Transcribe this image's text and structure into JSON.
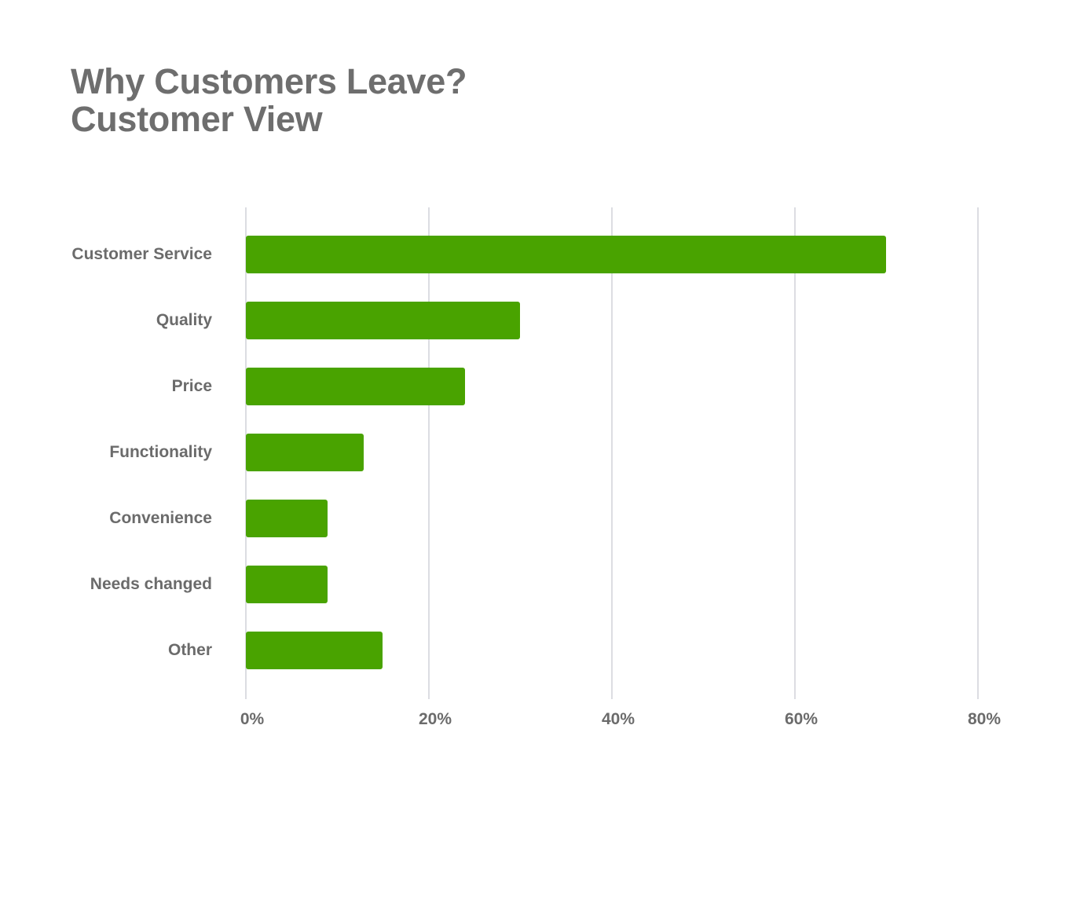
{
  "title": {
    "line1": "Why Customers Leave?",
    "line2": "Customer View"
  },
  "colors": {
    "bar": "#49a300",
    "grid": "#dcdde2",
    "text": "#6b6b6b"
  },
  "axis": {
    "ticks": [
      "0%",
      "20%",
      "40%",
      "60%",
      "80%"
    ]
  },
  "chart_data": {
    "type": "bar",
    "orientation": "horizontal",
    "title": "Why Customers Leave? Customer View",
    "categories": [
      "Customer Service",
      "Quality",
      "Price",
      "Functionality",
      "Convenience",
      "Needs changed",
      "Other"
    ],
    "values": [
      70,
      30,
      24,
      13,
      9,
      9,
      15
    ],
    "xlabel": "",
    "ylabel": "",
    "xlim": [
      0,
      80
    ],
    "x_tick_labels": [
      "0%",
      "20%",
      "40%",
      "60%",
      "80%"
    ],
    "grid": true,
    "legend": null,
    "units": "%"
  }
}
